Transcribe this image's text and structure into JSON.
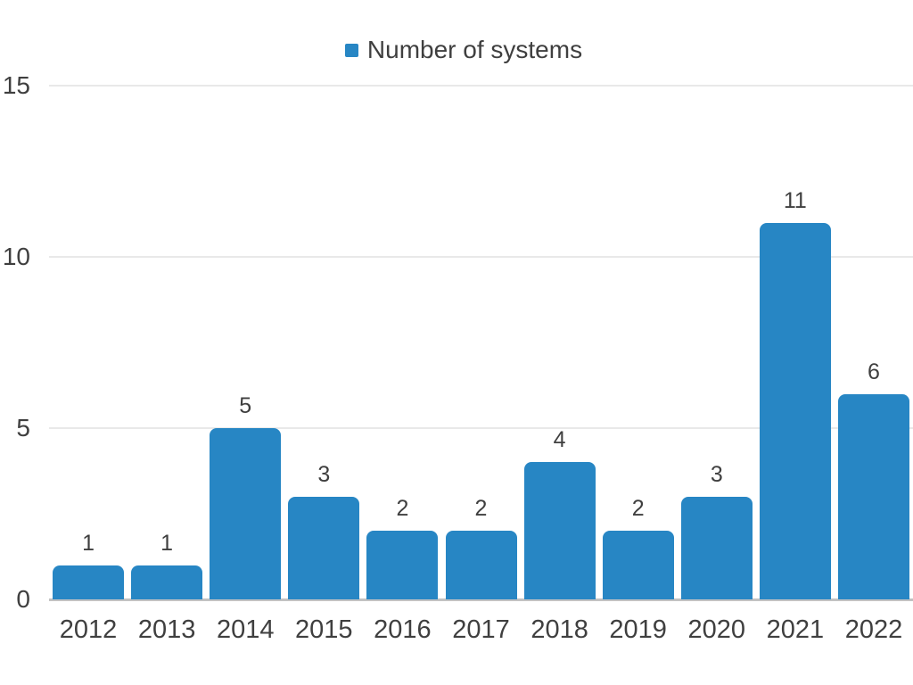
{
  "chart_data": {
    "type": "bar",
    "title": "",
    "legend": {
      "label": "Number of systems",
      "position": "top-center"
    },
    "categories": [
      "2012",
      "2013",
      "2014",
      "2015",
      "2016",
      "2017",
      "2018",
      "2019",
      "2020",
      "2021",
      "2022"
    ],
    "series": [
      {
        "name": "Number of systems",
        "values": [
          1,
          1,
          5,
          3,
          2,
          2,
          4,
          2,
          3,
          11,
          6
        ]
      }
    ],
    "data_labels_shown": true,
    "xlabel": "",
    "ylabel": "",
    "yticks": [
      0,
      5,
      10,
      15
    ],
    "ylim": [
      0,
      15.6
    ],
    "grid": true,
    "colors": {
      "bar": "#2786c4",
      "gridline": "#e9e9e9",
      "axis_line": "#c2c2c2",
      "text": "#3f3f3f",
      "background": "#ffffff"
    }
  }
}
